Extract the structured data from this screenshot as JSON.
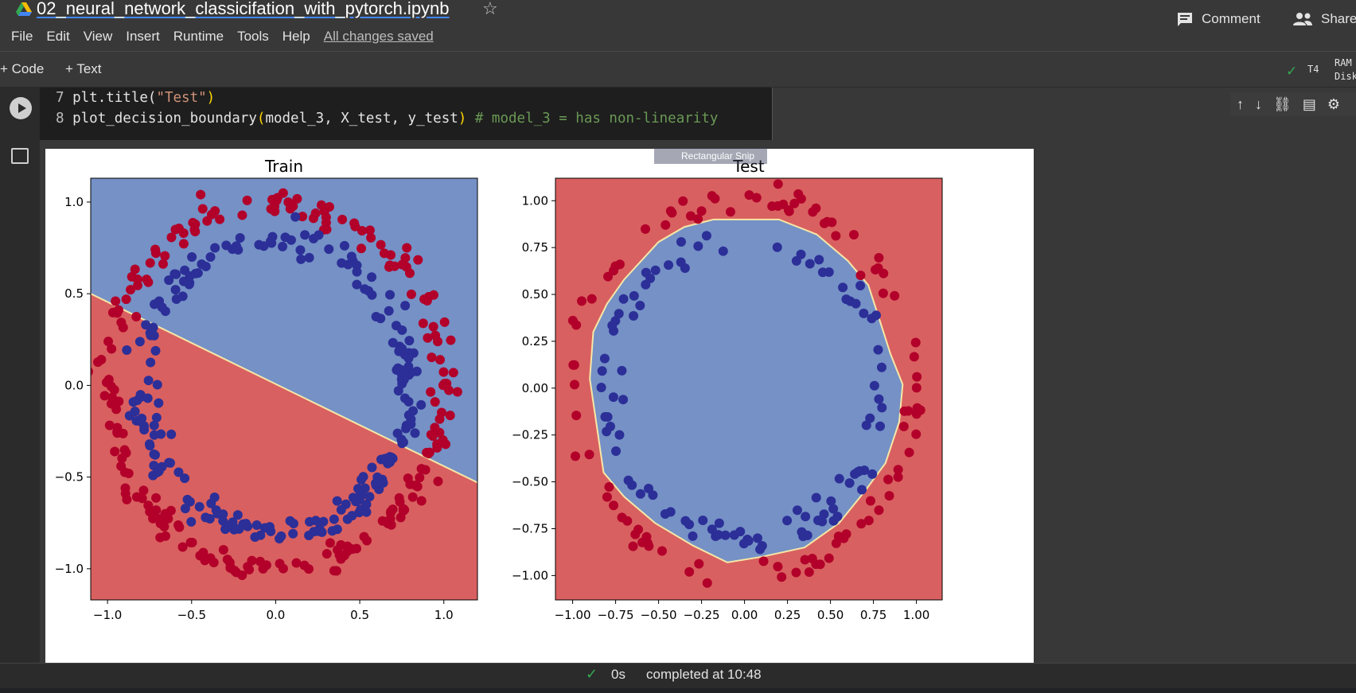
{
  "notebook": {
    "title": "02_neural_network_classicifation_with_pytorch.ipynb",
    "save_status": "All changes saved"
  },
  "menu": [
    "File",
    "Edit",
    "View",
    "Insert",
    "Runtime",
    "Tools",
    "Help"
  ],
  "header_actions": {
    "comment": "Comment",
    "share": "Share"
  },
  "toolbar": {
    "add_code": "+ Code",
    "add_text": "+ Text",
    "runtime_type": "T4",
    "ram_label": "RAM",
    "disk_label": "Disk"
  },
  "cell": {
    "lines": [
      {
        "number": "7",
        "pre": "plt.title(",
        "string": "\"Test\"",
        "post": ")"
      },
      {
        "number": "8",
        "call": "plot_decision_boundary",
        "args": "model_3, X_test, y_test",
        "comment": "# model_3 = has non-linearity"
      }
    ]
  },
  "overlay": {
    "snip_label": "Rectangular Snip"
  },
  "status": {
    "duration": "0s",
    "completed": "completed at 10:48"
  },
  "colors": {
    "region_red": "#d96060",
    "region_blue": "#7591c6",
    "point_red": "#b2002a",
    "point_blue": "#2c2f97",
    "boundary": "#f6e7a6"
  },
  "chart_data": [
    {
      "type": "scatter",
      "title": "Train",
      "xlim": [
        -1.1,
        1.2
      ],
      "ylim": [
        -1.17,
        1.13
      ],
      "xticks": [
        "−1.0",
        "−0.5",
        "0.0",
        "0.5",
        "1.0"
      ],
      "xtick_values": [
        -1.0,
        -0.5,
        0.0,
        0.5,
        1.0
      ],
      "yticks": [
        "−1.0",
        "−0.5",
        "0.0",
        "0.5",
        "1.0"
      ],
      "ytick_values": [
        -1.0,
        -0.5,
        0.0,
        0.5,
        1.0
      ],
      "decision_boundary": {
        "kind": "line",
        "points": [
          [
            -1.1,
            0.5
          ],
          [
            1.2,
            -0.53
          ]
        ],
        "above": "blue",
        "below": "red"
      },
      "series": [
        {
          "class": "red",
          "shape": "ring",
          "radius": 1.0,
          "noise": 0.04,
          "count": 230
        },
        {
          "class": "blue",
          "shape": "ring",
          "radius": 0.8,
          "noise": 0.04,
          "count": 220
        }
      ]
    },
    {
      "type": "scatter",
      "title": "Test",
      "xlim": [
        -1.1,
        1.15
      ],
      "ylim": [
        -1.13,
        1.12
      ],
      "xticks": [
        "−1.00",
        "−0.75",
        "−0.50",
        "−0.25",
        "0.00",
        "0.25",
        "0.50",
        "0.75",
        "1.00"
      ],
      "xtick_values": [
        -1.0,
        -0.75,
        -0.5,
        -0.25,
        0.0,
        0.25,
        0.5,
        0.75,
        1.0
      ],
      "yticks": [
        "−1.00",
        "−0.75",
        "−0.50",
        "−0.25",
        "0.00",
        "0.25",
        "0.50",
        "0.75",
        "1.00"
      ],
      "ytick_values": [
        -1.0,
        -0.75,
        -0.5,
        -0.25,
        0.0,
        0.25,
        0.5,
        0.75,
        1.0
      ],
      "decision_boundary": {
        "kind": "polygon",
        "inside": "blue",
        "outside": "red",
        "points": [
          [
            -0.18,
            0.9
          ],
          [
            0.2,
            0.9
          ],
          [
            0.42,
            0.82
          ],
          [
            0.6,
            0.68
          ],
          [
            0.72,
            0.55
          ],
          [
            0.78,
            0.38
          ],
          [
            0.85,
            0.18
          ],
          [
            0.92,
            0.02
          ],
          [
            0.9,
            -0.18
          ],
          [
            0.82,
            -0.4
          ],
          [
            0.7,
            -0.55
          ],
          [
            0.55,
            -0.72
          ],
          [
            0.35,
            -0.85
          ],
          [
            0.1,
            -0.9
          ],
          [
            -0.1,
            -0.93
          ],
          [
            -0.3,
            -0.84
          ],
          [
            -0.52,
            -0.72
          ],
          [
            -0.7,
            -0.58
          ],
          [
            -0.82,
            -0.45
          ],
          [
            -0.86,
            -0.2
          ],
          [
            -0.9,
            0.05
          ],
          [
            -0.88,
            0.3
          ],
          [
            -0.8,
            0.45
          ],
          [
            -0.7,
            0.58
          ],
          [
            -0.5,
            0.78
          ],
          [
            -0.35,
            0.86
          ]
        ]
      },
      "series": [
        {
          "class": "red",
          "shape": "ring",
          "radius": 1.0,
          "noise": 0.04,
          "count": 100
        },
        {
          "class": "blue",
          "shape": "ring",
          "radius": 0.8,
          "noise": 0.04,
          "count": 100
        }
      ]
    }
  ]
}
